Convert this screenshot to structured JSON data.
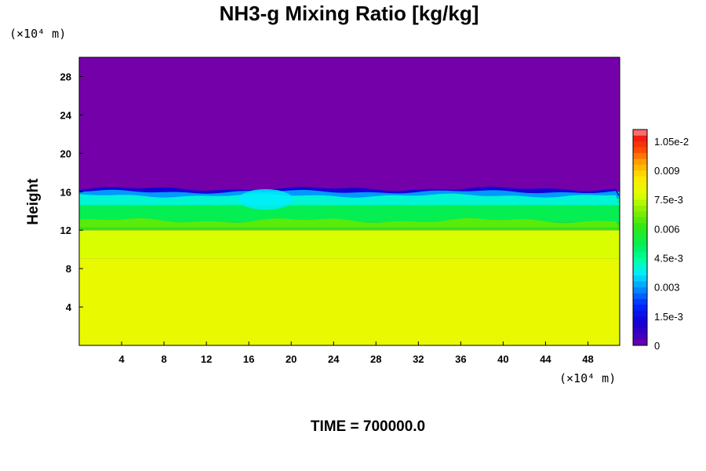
{
  "chart_data": {
    "type": "heatmap",
    "title": "NH3-g Mixing Ratio [kg/kg]",
    "ylabel": "Height",
    "x_unit": "(×10⁴ m)",
    "y_unit": "(×10⁴ m)",
    "x_ticks": [
      "4",
      "8",
      "12",
      "16",
      "20",
      "24",
      "28",
      "32",
      "36",
      "40",
      "44",
      "48"
    ],
    "y_ticks": [
      "4",
      "8",
      "12",
      "16",
      "20",
      "24",
      "28"
    ],
    "xlim": [
      0,
      51
    ],
    "ylim": [
      0,
      30
    ],
    "colorbar": {
      "range": [
        0,
        0.0111
      ],
      "labels": [
        "0",
        "1.5e-3",
        "0.003",
        "4.5e-3",
        "0.006",
        "7.5e-3",
        "0.009",
        "1.05e-2"
      ],
      "label_values": [
        0,
        0.0015,
        0.003,
        0.0045,
        0.006,
        0.0075,
        0.009,
        0.0105
      ]
    },
    "layers": [
      {
        "y_from": 0,
        "y_to": 9.0,
        "value": 0.008
      },
      {
        "y_from": 9.0,
        "y_to": 12.0,
        "value": 0.0077
      },
      {
        "y_from": 12.0,
        "y_to": 12.8,
        "value": 0.006
      },
      {
        "y_from": 12.8,
        "y_to": 15.0,
        "value": 0.0052
      },
      {
        "y_from": 15.0,
        "y_to": 16.0,
        "value": 0.0047
      },
      {
        "y_from": 16.0,
        "y_to": 30.0,
        "value": 0.0
      }
    ],
    "time_label": "TIME = 700000.0",
    "colors": {
      "background": "#7300a8",
      "lower": "#e1ff00"
    }
  }
}
